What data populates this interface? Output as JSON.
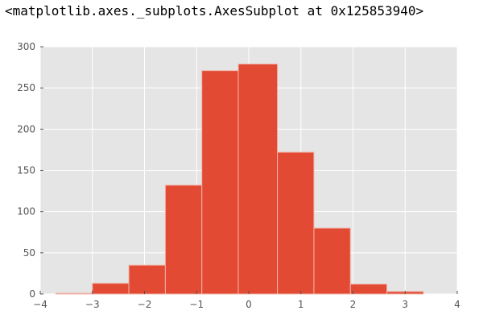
{
  "output_repr": "<matplotlib.axes._subplots.AxesSubplot at 0x125853940>",
  "chart_data": {
    "type": "bar",
    "style": "histogram",
    "bins": [
      {
        "x0": -3.7,
        "x1": -3.0,
        "count": 1
      },
      {
        "x0": -3.0,
        "x1": -2.3,
        "count": 13
      },
      {
        "x0": -2.3,
        "x1": -1.6,
        "count": 35
      },
      {
        "x0": -1.6,
        "x1": -0.9,
        "count": 132
      },
      {
        "x0": -0.9,
        "x1": -0.2,
        "count": 271
      },
      {
        "x0": -0.2,
        "x1": 0.55,
        "count": 279
      },
      {
        "x0": 0.55,
        "x1": 1.25,
        "count": 172
      },
      {
        "x0": 1.25,
        "x1": 1.95,
        "count": 80
      },
      {
        "x0": 1.95,
        "x1": 2.65,
        "count": 12
      },
      {
        "x0": 2.65,
        "x1": 3.35,
        "count": 3
      }
    ],
    "xlim": [
      -4,
      4
    ],
    "ylim": [
      0,
      300
    ],
    "xticks": [
      -4,
      -3,
      -2,
      -1,
      0,
      1,
      2,
      3,
      4
    ],
    "yticks": [
      0,
      50,
      100,
      150,
      200,
      250,
      300
    ],
    "xtick_labels": [
      "−4",
      "−3",
      "−2",
      "−1",
      "0",
      "1",
      "2",
      "3",
      "4"
    ],
    "ytick_labels": [
      "0",
      "50",
      "100",
      "150",
      "200",
      "250",
      "300"
    ],
    "grid": true,
    "colors": {
      "bar": "#E24A33",
      "bar_edge": "#F1B4A8",
      "background": "#E5E5E5",
      "grid": "#FFFFFF",
      "tick_text": "#555555"
    }
  }
}
